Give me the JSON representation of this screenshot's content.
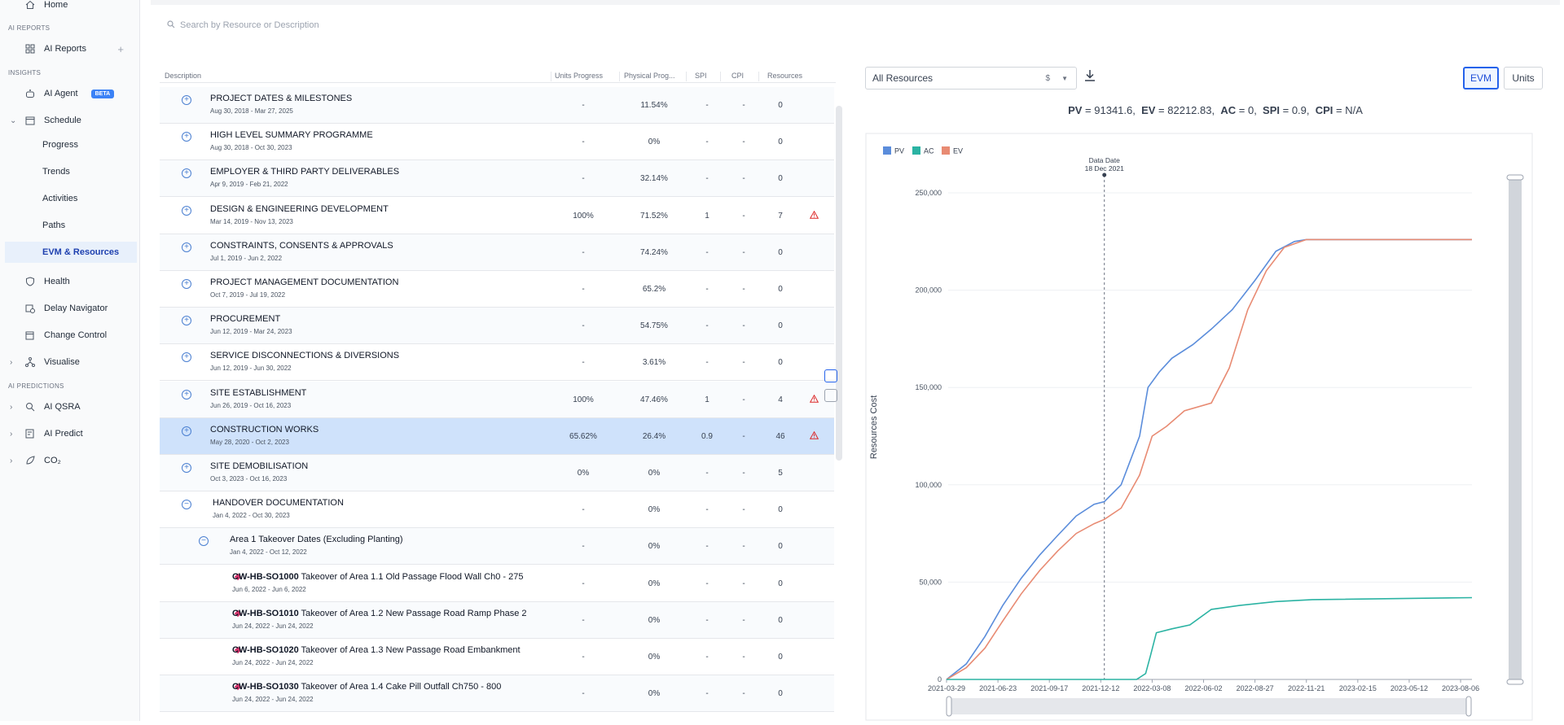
{
  "sidebar": {
    "home": "Home",
    "section_ai_reports": "AI REPORTS",
    "ai_reports": "AI Reports",
    "section_insights": "INSIGHTS",
    "ai_agent": "AI Agent",
    "beta": "BETA",
    "schedule": "Schedule",
    "progress": "Progress",
    "trends": "Trends",
    "activities": "Activities",
    "paths": "Paths",
    "evm_resources": "EVM & Resources",
    "health": "Health",
    "delay_navigator": "Delay Navigator",
    "change_control": "Change Control",
    "visualise": "Visualise",
    "section_ai_predictions": "AI PREDICTIONS",
    "ai_qsra": "AI QSRA",
    "ai_predict": "AI Predict",
    "co2": "CO₂"
  },
  "search": {
    "placeholder": "Search by Resource or Description"
  },
  "table": {
    "headers": {
      "description": "Description",
      "units_progress": "Units Progress",
      "physical_progress": "Physical Prog...",
      "spi": "SPI",
      "cpi": "CPI",
      "resources": "Resources"
    },
    "rows": [
      {
        "title": "PROJECT DATES & MILESTONES",
        "dates": "Aug 30, 2018 - Mar 27, 2025",
        "units": "-",
        "physical": "11.54%",
        "spi": "-",
        "cpi": "-",
        "resources": "0"
      },
      {
        "title": "HIGH LEVEL SUMMARY PROGRAMME",
        "dates": "Aug 30, 2018 - Oct 30, 2023",
        "units": "-",
        "physical": "0%",
        "spi": "-",
        "cpi": "-",
        "resources": "0"
      },
      {
        "title": "EMPLOYER & THIRD PARTY DELIVERABLES",
        "dates": "Apr 9, 2019 - Feb 21, 2022",
        "units": "-",
        "physical": "32.14%",
        "spi": "-",
        "cpi": "-",
        "resources": "0"
      },
      {
        "title": "DESIGN & ENGINEERING DEVELOPMENT",
        "dates": "Mar 14, 2019 - Nov 13, 2023",
        "units": "100%",
        "physical": "71.52%",
        "spi": "1",
        "cpi": "-",
        "resources": "7"
      },
      {
        "title": "CONSTRAINTS, CONSENTS & APPROVALS",
        "dates": "Jul 1, 2019 - Jun 2, 2022",
        "units": "-",
        "physical": "74.24%",
        "spi": "-",
        "cpi": "-",
        "resources": "0"
      },
      {
        "title": "PROJECT MANAGEMENT DOCUMENTATION",
        "dates": "Oct 7, 2019 - Jul 19, 2022",
        "units": "-",
        "physical": "65.2%",
        "spi": "-",
        "cpi": "-",
        "resources": "0"
      },
      {
        "title": "PROCUREMENT",
        "dates": "Jun 12, 2019 - Mar 24, 2023",
        "units": "-",
        "physical": "54.75%",
        "spi": "-",
        "cpi": "-",
        "resources": "0"
      },
      {
        "title": "SERVICE DISCONNECTIONS & DIVERSIONS",
        "dates": "Jun 12, 2019 - Jun 30, 2022",
        "units": "-",
        "physical": "3.61%",
        "spi": "-",
        "cpi": "-",
        "resources": "0"
      },
      {
        "title": "SITE ESTABLISHMENT",
        "dates": "Jun 26, 2019 - Oct 16, 2023",
        "units": "100%",
        "physical": "47.46%",
        "spi": "1",
        "cpi": "-",
        "resources": "4"
      },
      {
        "title": "CONSTRUCTION WORKS",
        "dates": "May 28, 2020 - Oct 2, 2023",
        "units": "65.62%",
        "physical": "26.4%",
        "spi": "0.9",
        "cpi": "-",
        "resources": "46"
      },
      {
        "title": "SITE DEMOBILISATION",
        "dates": "Oct 3, 2023 - Oct 16, 2023",
        "units": "0%",
        "physical": "0%",
        "spi": "-",
        "cpi": "-",
        "resources": "5"
      },
      {
        "title": "HANDOVER DOCUMENTATION",
        "dates": "Jan 4, 2022 - Oct 30, 2023",
        "units": "-",
        "physical": "0%",
        "spi": "-",
        "cpi": "-",
        "resources": "0"
      },
      {
        "title": "Area 1 Takeover Dates (Excluding Planting)",
        "dates": "Jan 4, 2022 - Oct 12, 2022",
        "units": "-",
        "physical": "0%",
        "spi": "-",
        "cpi": "-",
        "resources": "0"
      },
      {
        "code": "CW-HB-SO1000",
        "title": "Takeover of Area 1.1 Old Passage Flood Wall Ch0 - 275",
        "dates": "Jun 6, 2022 - Jun 6, 2022",
        "units": "-",
        "physical": "0%",
        "spi": "-",
        "cpi": "-",
        "resources": "0"
      },
      {
        "code": "CW-HB-SO1010",
        "title": "Takeover of Area 1.2 New Passage Road Ramp Phase 2",
        "dates": "Jun 24, 2022 - Jun 24, 2022",
        "units": "-",
        "physical": "0%",
        "spi": "-",
        "cpi": "-",
        "resources": "0"
      },
      {
        "code": "CW-HB-SO1020",
        "title": "Takeover of Area 1.3 New Passage Road Embankment",
        "dates": "Jun 24, 2022 - Jun 24, 2022",
        "units": "-",
        "physical": "0%",
        "spi": "-",
        "cpi": "-",
        "resources": "0"
      },
      {
        "code": "CW-HB-SO1030",
        "title": "Takeover of Area 1.4 Cake Pill Outfall Ch750 - 800",
        "dates": "Jun 24, 2022 - Jun 24, 2022",
        "units": "-",
        "physical": "0%",
        "spi": "-",
        "cpi": "-",
        "resources": "0"
      }
    ]
  },
  "controls": {
    "resource_select": "All Resources",
    "currency": "$",
    "evm_button": "EVM",
    "units_button": "Units"
  },
  "summary": {
    "pv_label": "PV",
    "pv_value": "91341.6",
    "ev_label": "EV",
    "ev_value": "82212.83",
    "ac_label": "AC",
    "ac_value": "0",
    "spi_label": "SPI",
    "spi_value": "0.9",
    "cpi_label": "CPI",
    "cpi_value": "N/A"
  },
  "colors": {
    "pv": "#5b8ddb",
    "ac": "#2bb3a3",
    "ev": "#e88b73",
    "accent": "#2563eb",
    "warn": "#dc2626"
  },
  "chart_data": {
    "type": "line",
    "ylabel": "Resources Cost",
    "xlabel": "",
    "ylim": [
      0,
      250000
    ],
    "yticks": [
      "0",
      "50,000",
      "100,000",
      "150,000",
      "200,000",
      "250,000"
    ],
    "xticks": [
      "2021-03-29",
      "2021-06-23",
      "2021-09-17",
      "2021-12-12",
      "2022-03-08",
      "2022-06-02",
      "2022-08-27",
      "2022-11-21",
      "2023-02-15",
      "2023-05-12",
      "2023-08-06"
    ],
    "legend": [
      "PV",
      "AC",
      "EV"
    ],
    "data_date_label": "Data Date",
    "data_date_value": "18 Dec 2021",
    "data_date": "2021-12-18",
    "grid": true,
    "series": [
      {
        "name": "PV",
        "points": [
          [
            "2021-03-29",
            0
          ],
          [
            "2021-05-01",
            8000
          ],
          [
            "2021-06-01",
            22000
          ],
          [
            "2021-07-01",
            38000
          ],
          [
            "2021-08-01",
            52000
          ],
          [
            "2021-09-01",
            64000
          ],
          [
            "2021-10-01",
            74000
          ],
          [
            "2021-11-01",
            84000
          ],
          [
            "2021-12-01",
            90000
          ],
          [
            "2021-12-18",
            91341
          ],
          [
            "2022-01-15",
            100000
          ],
          [
            "2022-02-15",
            125000
          ],
          [
            "2022-03-01",
            150000
          ],
          [
            "2022-03-20",
            158000
          ],
          [
            "2022-04-10",
            165000
          ],
          [
            "2022-05-15",
            172000
          ],
          [
            "2022-06-15",
            180000
          ],
          [
            "2022-07-20",
            190000
          ],
          [
            "2022-08-27",
            205000
          ],
          [
            "2022-10-01",
            220000
          ],
          [
            "2022-11-01",
            225000
          ],
          [
            "2022-11-21",
            226000
          ],
          [
            "2023-08-25",
            226000
          ]
        ]
      },
      {
        "name": "EV",
        "points": [
          [
            "2021-03-29",
            0
          ],
          [
            "2021-05-01",
            6000
          ],
          [
            "2021-06-01",
            16000
          ],
          [
            "2021-07-01",
            30000
          ],
          [
            "2021-08-01",
            44000
          ],
          [
            "2021-09-01",
            56000
          ],
          [
            "2021-10-01",
            66000
          ],
          [
            "2021-11-01",
            75000
          ],
          [
            "2021-12-01",
            80000
          ],
          [
            "2021-12-18",
            82212
          ],
          [
            "2022-01-15",
            88000
          ],
          [
            "2022-02-15",
            105000
          ],
          [
            "2022-03-08",
            125000
          ],
          [
            "2022-04-01",
            130000
          ],
          [
            "2022-05-01",
            138000
          ],
          [
            "2022-06-15",
            142000
          ],
          [
            "2022-07-15",
            160000
          ],
          [
            "2022-08-15",
            190000
          ],
          [
            "2022-09-15",
            210000
          ],
          [
            "2022-10-15",
            222000
          ],
          [
            "2022-11-21",
            226000
          ],
          [
            "2023-08-25",
            226000
          ]
        ]
      },
      {
        "name": "AC",
        "points": [
          [
            "2021-03-29",
            0
          ],
          [
            "2022-02-10",
            0
          ],
          [
            "2022-02-25",
            3000
          ],
          [
            "2022-03-05",
            12000
          ],
          [
            "2022-03-15",
            24000
          ],
          [
            "2022-04-10",
            26000
          ],
          [
            "2022-05-10",
            28000
          ],
          [
            "2022-06-15",
            36000
          ],
          [
            "2022-08-01",
            38000
          ],
          [
            "2022-10-01",
            40000
          ],
          [
            "2022-12-01",
            41000
          ],
          [
            "2023-08-25",
            42000
          ]
        ]
      }
    ]
  }
}
